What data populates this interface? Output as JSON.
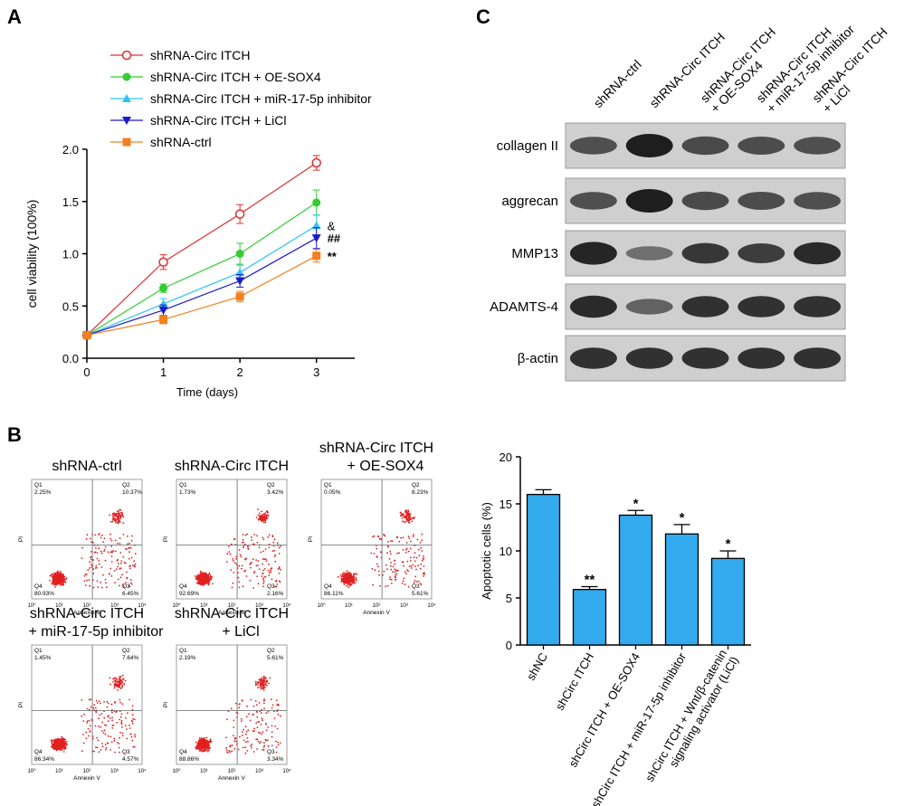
{
  "panels": {
    "a": {
      "letter": "A"
    },
    "b": {
      "letter": "B"
    },
    "c": {
      "letter": "C"
    }
  },
  "chart_data": [
    {
      "type": "line",
      "x": [
        0,
        1,
        2,
        3
      ],
      "xlabel": "Time (days)",
      "ylabel": "cell viability (100%)",
      "xticks": [
        "0",
        "1",
        "2",
        "3"
      ],
      "yticks": [
        "0.0",
        "0.5",
        "1.0",
        "1.5",
        "2.0"
      ],
      "xlim": [
        0,
        3.5
      ],
      "ylim": [
        0,
        2.0
      ],
      "series": [
        {
          "name": "shRNA-Circ ITCH",
          "color": "#e03030",
          "marker": "open-circle",
          "values": [
            0.22,
            0.92,
            1.38,
            1.87
          ],
          "errors": [
            0.02,
            0.07,
            0.09,
            0.07
          ]
        },
        {
          "name": "shRNA-Circ ITCH + OE-SOX4",
          "color": "#33cc33",
          "marker": "circle",
          "values": [
            0.22,
            0.67,
            1.0,
            1.49
          ],
          "errors": [
            0.02,
            0.04,
            0.1,
            0.12
          ]
        },
        {
          "name": "shRNA-Circ ITCH + miR-17-5p inhibitor",
          "color": "#2ec4f0",
          "marker": "triangle-up",
          "values": [
            0.22,
            0.52,
            0.82,
            1.27
          ],
          "errors": [
            0.02,
            0.05,
            0.07,
            0.1
          ]
        },
        {
          "name": "shRNA-Circ ITCH + LiCl",
          "color": "#1a1acc",
          "marker": "triangle-down",
          "values": [
            0.22,
            0.46,
            0.74,
            1.15
          ],
          "errors": [
            0.02,
            0.05,
            0.06,
            0.1
          ]
        },
        {
          "name": "shRNA-ctrl",
          "color": "#f08020",
          "marker": "square",
          "values": [
            0.22,
            0.37,
            0.59,
            0.98
          ],
          "errors": [
            0.02,
            0.04,
            0.05,
            0.06
          ]
        }
      ],
      "annotations": [
        {
          "text": "&",
          "series": 2
        },
        {
          "text": "##",
          "series": 3
        },
        {
          "text": "**",
          "series": 4
        }
      ]
    },
    {
      "type": "bar",
      "categories": [
        "shNC",
        "shCirc ITCH",
        "shCirc ITCH + OE-SOX4",
        "shCirc ITCH + miR-17-5p inhibitor",
        "shCirc ITCH + Wnt/β-catenin\nsignaling activator (LiCl)"
      ],
      "values": [
        16.0,
        5.9,
        13.8,
        11.8,
        9.2
      ],
      "errors": [
        0.5,
        0.3,
        0.5,
        1.0,
        0.8
      ],
      "significance": [
        "",
        "**",
        "*",
        "*",
        "*"
      ],
      "ylabel": "Apoptotic cells (%)",
      "yticks": [
        "0",
        "5",
        "10",
        "15",
        "20"
      ],
      "ylim": [
        0,
        20
      ],
      "color": "#33aaee"
    }
  ],
  "flow": {
    "x_axis_label": "Annexin V",
    "y_axis_label": "PI",
    "tick_labels": [
      "10⁰",
      "10¹",
      "10²",
      "10³",
      "10⁴"
    ],
    "plots": [
      {
        "title1": "shRNA-ctrl",
        "title2": "",
        "q1": "2.25%",
        "q2": "10.37%",
        "q3": "6.45%",
        "q4": "80.93%"
      },
      {
        "title1": "shRNA-Circ ITCH",
        "title2": "",
        "q1": "1.73%",
        "q2": "3.42%",
        "q3": "2.16%",
        "q4": "92.69%"
      },
      {
        "title1": "shRNA-Circ ITCH",
        "title2": "+ OE-SOX4",
        "q1": "0.05%",
        "q2": "8.23%",
        "q3": "5.61%",
        "q4": "86.11%"
      },
      {
        "title1": "shRNA-Circ ITCH",
        "title2": "+ miR-17-5p inhibitor",
        "q1": "1.45%",
        "q2": "7.64%",
        "q3": "4.57%",
        "q4": "86.34%"
      },
      {
        "title1": "shRNA-Circ ITCH",
        "title2": "+ LiCl",
        "q1": "2.19%",
        "q2": "5.61%",
        "q3": "3.34%",
        "q4": "88.86%"
      }
    ]
  },
  "blot": {
    "lanes": [
      {
        "line1": "shRNA-ctrl",
        "line2": ""
      },
      {
        "line1": "shRNA-Circ ITCH",
        "line2": ""
      },
      {
        "line1": "shRNA-Circ ITCH",
        "line2": "+ OE-SOX4"
      },
      {
        "line1": "shRNA-Circ ITCH",
        "line2": "+ miR-17-5p inhibitor"
      },
      {
        "line1": "shRNA-Circ ITCH",
        "line2": "+ LiCl"
      }
    ],
    "rows": [
      {
        "label": "collagen II",
        "intensities": [
          0.6,
          1.0,
          0.65,
          0.62,
          0.6
        ]
      },
      {
        "label": "aggrecan",
        "intensities": [
          0.6,
          1.0,
          0.65,
          0.62,
          0.6
        ]
      },
      {
        "label": "MMP13",
        "intensities": [
          0.95,
          0.35,
          0.8,
          0.75,
          0.9
        ]
      },
      {
        "label": "ADAMTS-4",
        "intensities": [
          0.9,
          0.45,
          0.85,
          0.85,
          0.85
        ]
      },
      {
        "label": "β-actin",
        "intensities": [
          0.85,
          0.85,
          0.85,
          0.85,
          0.85
        ]
      }
    ]
  }
}
